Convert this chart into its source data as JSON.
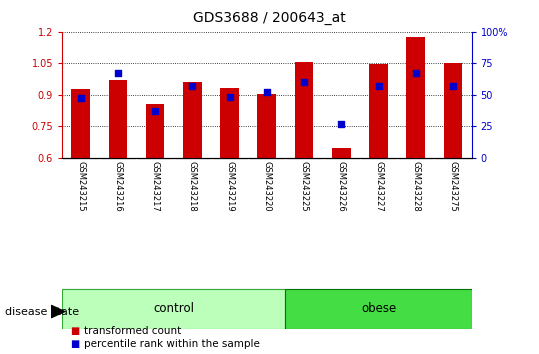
{
  "title": "GDS3688 / 200643_at",
  "samples": [
    "GSM243215",
    "GSM243216",
    "GSM243217",
    "GSM243218",
    "GSM243219",
    "GSM243220",
    "GSM243225",
    "GSM243226",
    "GSM243227",
    "GSM243228",
    "GSM243275"
  ],
  "red_values": [
    0.925,
    0.97,
    0.855,
    0.96,
    0.93,
    0.905,
    1.055,
    0.645,
    1.045,
    1.175,
    1.05
  ],
  "blue_values_pct": [
    47,
    67,
    37,
    57,
    48,
    52,
    60,
    27,
    57,
    67,
    57
  ],
  "ylim_left": [
    0.6,
    1.2
  ],
  "ylim_right": [
    0,
    100
  ],
  "yticks_left": [
    0.6,
    0.75,
    0.9,
    1.05,
    1.2
  ],
  "yticks_right": [
    0,
    25,
    50,
    75,
    100
  ],
  "ytick_labels_right": [
    "0",
    "25",
    "50",
    "75",
    "100%"
  ],
  "bar_color": "#CC0000",
  "dot_color": "#0000CC",
  "bar_bottom": 0.6,
  "groups": [
    {
      "label": "control",
      "start": 0,
      "end": 5,
      "color": "#bbffbb",
      "edge_color": "#33aa33"
    },
    {
      "label": "obese",
      "start": 6,
      "end": 10,
      "color": "#44dd44",
      "edge_color": "#007700"
    }
  ],
  "group_label_prefix": "disease state",
  "legend_items": [
    {
      "label": "transformed count",
      "color": "#CC0000"
    },
    {
      "label": "percentile rank within the sample",
      "color": "#0000CC"
    }
  ],
  "title_fontsize": 10,
  "tick_fontsize": 7,
  "label_fontsize": 8,
  "grid_color": "#000000",
  "bg_color": "#ffffff",
  "plot_bg": "#ffffff",
  "axis_label_color_left": "#CC0000",
  "axis_label_color_right": "#0000CC",
  "sample_label_bg": "#cccccc",
  "sample_label_border": "#888888"
}
